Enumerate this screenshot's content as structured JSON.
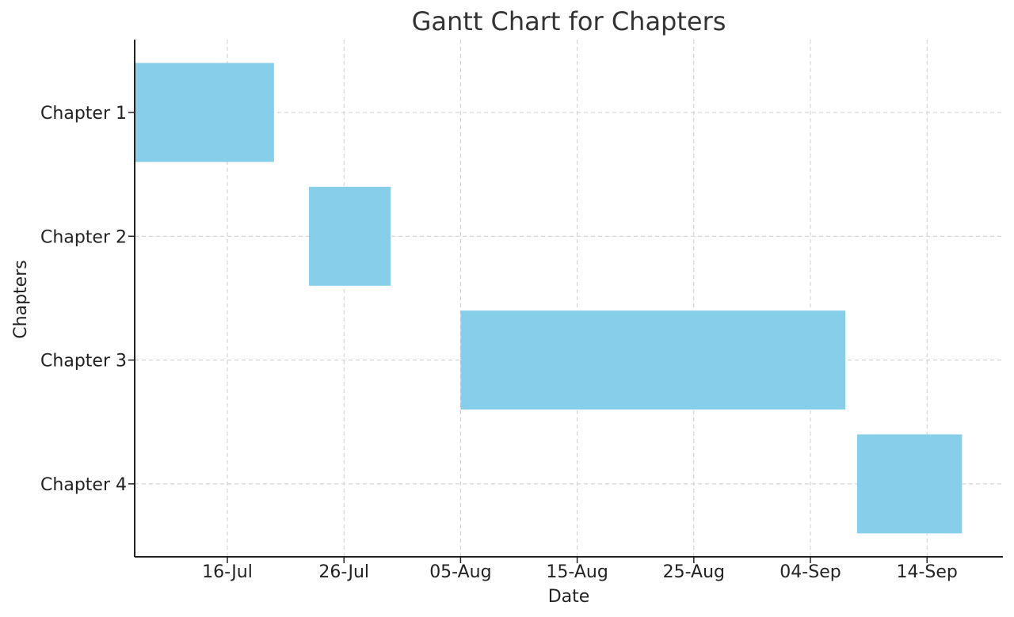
{
  "chart_data": {
    "type": "gantt",
    "title": "Gantt Chart for Chapters",
    "xlabel": "Date",
    "ylabel": "Chapters",
    "bar_color": "#87CEEB",
    "grid": true,
    "xlim": [
      "2024-07-08",
      "2024-09-22"
    ],
    "x_ticks": [
      {
        "date": "2024-07-16",
        "label": "16-Jul"
      },
      {
        "date": "2024-07-26",
        "label": "26-Jul"
      },
      {
        "date": "2024-08-05",
        "label": "05-Aug"
      },
      {
        "date": "2024-08-15",
        "label": "15-Aug"
      },
      {
        "date": "2024-08-25",
        "label": "25-Aug"
      },
      {
        "date": "2024-09-04",
        "label": "04-Sep"
      },
      {
        "date": "2024-09-14",
        "label": "14-Sep"
      }
    ],
    "tasks": [
      {
        "name": "Chapter 1",
        "start": "2024-07-08",
        "end": "2024-07-20"
      },
      {
        "name": "Chapter 2",
        "start": "2024-07-23",
        "end": "2024-07-30"
      },
      {
        "name": "Chapter 3",
        "start": "2024-08-05",
        "end": "2024-09-07"
      },
      {
        "name": "Chapter 4",
        "start": "2024-09-08",
        "end": "2024-09-17"
      }
    ]
  }
}
